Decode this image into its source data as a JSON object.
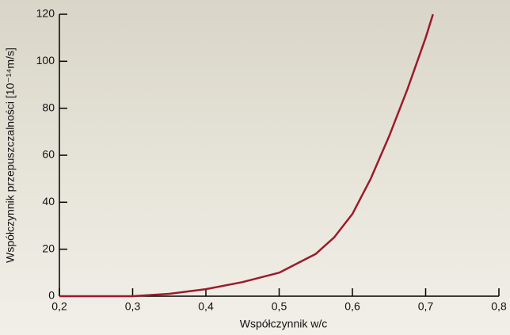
{
  "chart_data": {
    "type": "line",
    "xlabel": "Współczynnik w/c",
    "ylabel": "Współczynnik przepuszczalności [10⁻¹⁴m/s]",
    "x": [
      0.2,
      0.25,
      0.3,
      0.35,
      0.4,
      0.45,
      0.5,
      0.55,
      0.575,
      0.6,
      0.625,
      0.65,
      0.675,
      0.7,
      0.71
    ],
    "series": [
      {
        "color": "#9b1b2b",
        "values": [
          0,
          0,
          0,
          1,
          3,
          6,
          10,
          18,
          25,
          35,
          50,
          68,
          88,
          110,
          120
        ]
      }
    ],
    "xlim": [
      0.2,
      0.8
    ],
    "xticks": [
      {
        "value": 0.2,
        "label": "0,2"
      },
      {
        "value": 0.3,
        "label": "0,3"
      },
      {
        "value": 0.4,
        "label": "0,4"
      },
      {
        "value": 0.5,
        "label": "0,5"
      },
      {
        "value": 0.6,
        "label": "0,6"
      },
      {
        "value": 0.7,
        "label": "0,7"
      },
      {
        "value": 0.8,
        "label": "0,8"
      }
    ],
    "ylim": [
      0,
      120
    ],
    "yticks": [
      0,
      20,
      40,
      60,
      80,
      100,
      120
    ]
  }
}
